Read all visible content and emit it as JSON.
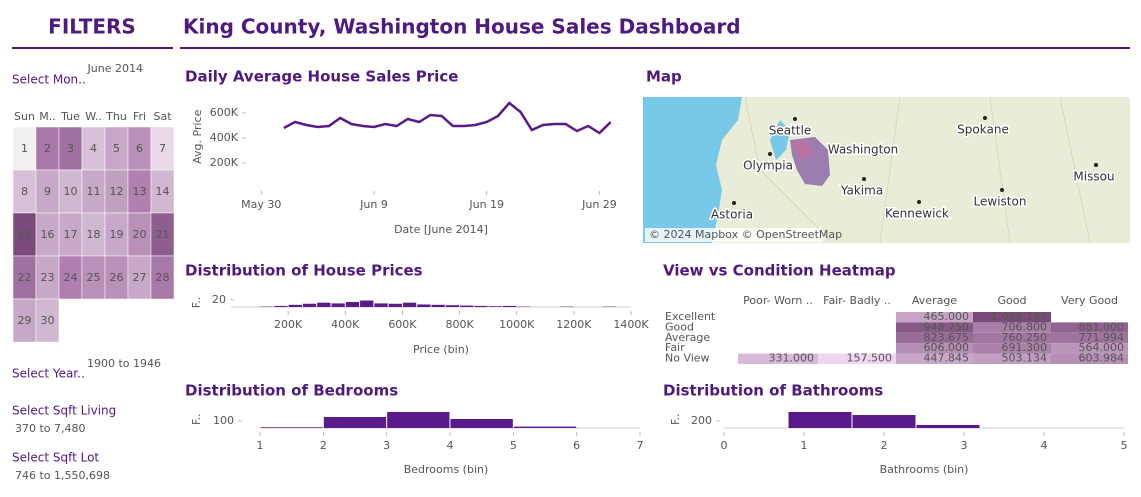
{
  "header": {
    "title": "King County, Washington House Sales Dashboard"
  },
  "filters": {
    "title": "FILTERS",
    "month_label": "Select Mon..",
    "month_value": "June 2014",
    "calendar": {
      "weekdays": [
        "Sun",
        "M..",
        "Tue",
        "W..",
        "Thu",
        "Fri",
        "Sat"
      ],
      "days": [
        1,
        2,
        3,
        4,
        5,
        6,
        7,
        8,
        9,
        10,
        11,
        12,
        13,
        14,
        15,
        16,
        17,
        18,
        19,
        20,
        21,
        22,
        23,
        24,
        25,
        26,
        27,
        28,
        29,
        30
      ],
      "day_colors": [
        "#f0f0f0",
        "#a878a8",
        "#a070a0",
        "#d8c0d8",
        "#c8a8c8",
        "#b890b8",
        "#e8d8e8",
        "#d8c0d8",
        "#c8a8c8",
        "#d0b8d0",
        "#c8a8c8",
        "#c0a0c0",
        "#b080b0",
        "#d0b8d0",
        "#7a4a7a",
        "#c8a8c8",
        "#c8a8c8",
        "#d0b8d0",
        "#c8a8c8",
        "#b890b8",
        "#8e5e8e",
        "#a070a0",
        "#c8a8c8",
        "#b080b0",
        "#b890b8",
        "#b890b8",
        "#c8a8c8",
        "#a878a8",
        "#c8a8c8",
        "#d0b8d0"
      ]
    },
    "year_label": "Select Year..",
    "year_value": "1900 to 1946",
    "sqft_living_label": "Select Sqft Living",
    "sqft_living_value": "370 to 7,480",
    "sqft_lot_label": "Select Sqft Lot",
    "sqft_lot_value": "746 to 1,550,698"
  },
  "map": {
    "title": "Map",
    "labels": [
      "Seattle",
      "Washington",
      "Spokane",
      "Olympia",
      "Yakima",
      "Kennewick",
      "Lewiston",
      "Astoria",
      "Missou"
    ],
    "attribution": "© 2024 Mapbox © OpenStreetMap"
  },
  "heatmap": {
    "title": "View vs Condition Heatmap",
    "columns": [
      "Poor- Worn ..",
      "Fair- Badly ..",
      "Average",
      "Good",
      "Very Good"
    ],
    "rows": [
      "Excellent",
      "Good",
      "Average",
      "Fair",
      "No View"
    ],
    "values": [
      [
        null,
        null,
        465000,
        1044193,
        null
      ],
      [
        null,
        null,
        948750,
        706800,
        881000
      ],
      [
        null,
        null,
        823675,
        760250,
        771994
      ],
      [
        null,
        null,
        606000,
        691300,
        564000
      ],
      [
        331000,
        157500,
        447845,
        503134,
        603984
      ]
    ],
    "value_labels": [
      [
        null,
        null,
        "465.000",
        "1.044.193",
        null
      ],
      [
        null,
        null,
        "948.750",
        "706.800",
        "881.000"
      ],
      [
        null,
        null,
        "823.675",
        "760.250",
        "771.994"
      ],
      [
        null,
        null,
        "606.000",
        "691.300",
        "564.000"
      ],
      [
        "331.000",
        "157.500",
        "447.845",
        "503.134",
        "603.984"
      ]
    ]
  },
  "chart_data": [
    {
      "type": "line",
      "title": "Daily Average House Sales Price",
      "xlabel": "Date [June 2014]",
      "ylabel": "Avg. Price",
      "color": "#5a1a8a",
      "x": [
        "2014-06-01",
        "2014-06-02",
        "2014-06-03",
        "2014-06-04",
        "2014-06-05",
        "2014-06-06",
        "2014-06-07",
        "2014-06-08",
        "2014-06-09",
        "2014-06-10",
        "2014-06-11",
        "2014-06-12",
        "2014-06-13",
        "2014-06-14",
        "2014-06-15",
        "2014-06-16",
        "2014-06-17",
        "2014-06-18",
        "2014-06-19",
        "2014-06-20",
        "2014-06-21",
        "2014-06-22",
        "2014-06-23",
        "2014-06-24",
        "2014-06-25",
        "2014-06-26",
        "2014-06-27",
        "2014-06-28",
        "2014-06-29",
        "2014-06-30"
      ],
      "values": [
        480000,
        528000,
        504000,
        488000,
        496000,
        560000,
        512000,
        496000,
        488000,
        512000,
        496000,
        552000,
        528000,
        584000,
        576000,
        496000,
        496000,
        504000,
        528000,
        576000,
        680000,
        608000,
        464000,
        504000,
        512000,
        512000,
        456000,
        496000,
        440000,
        528000
      ],
      "xlim": [
        "2014-05-29",
        "2014-07-01"
      ],
      "xticks": [
        {
          "value": "2014-05-30",
          "label": "May 30"
        },
        {
          "value": "2014-06-09",
          "label": "Jun 9"
        },
        {
          "value": "2014-06-19",
          "label": "Jun 19"
        },
        {
          "value": "2014-06-29",
          "label": "Jun 29"
        }
      ],
      "ylim": [
        100000,
        720000
      ],
      "yticks": [
        {
          "value": 200000,
          "label": "200K"
        },
        {
          "value": 400000,
          "label": "400K"
        },
        {
          "value": 600000,
          "label": "600K"
        }
      ]
    },
    {
      "type": "histogram",
      "title": "Distribution of House Prices",
      "xlabel": "Price (bin)",
      "ylabel": "F..",
      "color": "#5a1a8a",
      "bins": [
        100000,
        150000,
        200000,
        250000,
        300000,
        350000,
        400000,
        450000,
        500000,
        550000,
        600000,
        650000,
        700000,
        750000,
        800000,
        850000,
        900000,
        950000,
        1000000,
        1050000,
        1100000,
        1150000,
        1200000,
        1250000,
        1300000,
        1350000,
        1400000
      ],
      "values": [
        1,
        3,
        6,
        9,
        12,
        10,
        14,
        18,
        10,
        9,
        12,
        7,
        6,
        5,
        4,
        3,
        2,
        3,
        1,
        0,
        0,
        1,
        0,
        0,
        1,
        0
      ],
      "xlim": [
        0,
        1400000
      ],
      "xticks": [
        {
          "value": 200000,
          "label": "200K"
        },
        {
          "value": 400000,
          "label": "400K"
        },
        {
          "value": 600000,
          "label": "600K"
        },
        {
          "value": 800000,
          "label": "800K"
        },
        {
          "value": 1000000,
          "label": "1000K"
        },
        {
          "value": 1200000,
          "label": "1200K"
        },
        {
          "value": 1400000,
          "label": "1400K"
        }
      ],
      "ylim": [
        0,
        25
      ],
      "yticks": [
        20
      ]
    },
    {
      "type": "histogram",
      "title": "Distribution of Bedrooms",
      "xlabel": "Bedrooms (bin)",
      "ylabel": "F..",
      "color": "#5a1a8a",
      "bins": [
        1,
        2,
        3,
        4,
        5,
        6,
        7
      ],
      "values": [
        10,
        157,
        229,
        129,
        20,
        0
      ],
      "xlim": [
        1,
        7
      ],
      "xticks": [
        1,
        2,
        3,
        4,
        5,
        6,
        7
      ],
      "ylim": [
        0,
        250
      ],
      "yticks": [
        100
      ]
    },
    {
      "type": "histogram",
      "title": "Distribution of Bathrooms",
      "xlabel": "Bathrooms (bin)",
      "ylabel": "F..",
      "color": "#5a1a8a",
      "bins": [
        0.8,
        1.6,
        2.4,
        3.2
      ],
      "values": [
        457,
        371,
        86
      ],
      "xlim": [
        0,
        5
      ],
      "xticks": [
        0,
        1,
        2,
        3,
        4,
        5
      ],
      "ylim": [
        0,
        500
      ],
      "yticks": [
        200
      ]
    }
  ]
}
